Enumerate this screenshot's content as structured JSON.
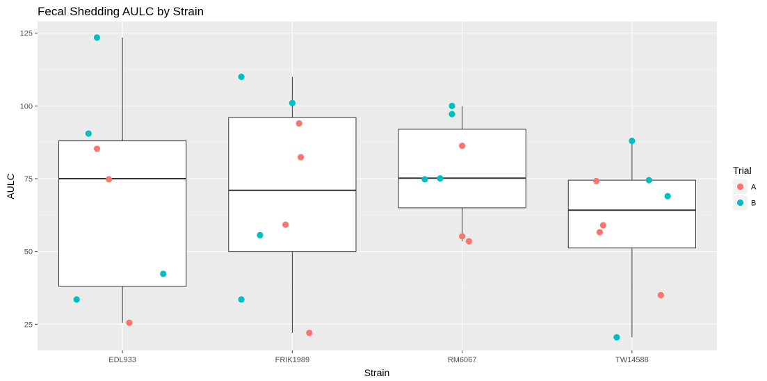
{
  "chart_data": {
    "type": "box",
    "title": "Fecal Shedding AULC by Strain",
    "xlabel": "Strain",
    "ylabel": "AULC",
    "ylim": [
      16,
      129
    ],
    "yticks": [
      25,
      50,
      75,
      100,
      125
    ],
    "grid": true,
    "legend_position": "right",
    "categories": [
      "EDL933",
      "FRIK1989",
      "RM6067",
      "TW14588"
    ],
    "boxes": [
      {
        "category": "EDL933",
        "min": 25.5,
        "q1": 38,
        "median": 75,
        "q3": 88,
        "max": 123.5
      },
      {
        "category": "FRIK1989",
        "min": 22,
        "q1": 50,
        "median": 71,
        "q3": 96,
        "max": 110
      },
      {
        "category": "RM6067",
        "min": 53.5,
        "q1": 65,
        "median": 75.2,
        "q3": 92,
        "max": 100
      },
      {
        "category": "TW14588",
        "min": 20.5,
        "q1": 51.2,
        "median": 64.2,
        "q3": 74.5,
        "max": 88
      }
    ],
    "legend": {
      "title": "Trial",
      "items": [
        {
          "label": "A",
          "color": "#F8766D"
        },
        {
          "label": "B",
          "color": "#00BFC4"
        }
      ]
    },
    "points": [
      {
        "category": "EDL933",
        "jitter": -0.27,
        "y": 33.5,
        "trial": "B"
      },
      {
        "category": "EDL933",
        "jitter": -0.2,
        "y": 90.5,
        "trial": "B"
      },
      {
        "category": "EDL933",
        "jitter": -0.15,
        "y": 123.5,
        "trial": "B"
      },
      {
        "category": "EDL933",
        "jitter": -0.15,
        "y": 85.3,
        "trial": "A"
      },
      {
        "category": "EDL933",
        "jitter": -0.08,
        "y": 74.8,
        "trial": "A"
      },
      {
        "category": "EDL933",
        "jitter": 0.04,
        "y": 25.5,
        "trial": "A"
      },
      {
        "category": "EDL933",
        "jitter": 0.24,
        "y": 42.3,
        "trial": "B"
      },
      {
        "category": "FRIK1989",
        "jitter": -0.3,
        "y": 110,
        "trial": "B"
      },
      {
        "category": "FRIK1989",
        "jitter": -0.3,
        "y": 33.5,
        "trial": "B"
      },
      {
        "category": "FRIK1989",
        "jitter": -0.19,
        "y": 55.6,
        "trial": "B"
      },
      {
        "category": "FRIK1989",
        "jitter": -0.04,
        "y": 59.2,
        "trial": "A"
      },
      {
        "category": "FRIK1989",
        "jitter": 0.0,
        "y": 101,
        "trial": "B"
      },
      {
        "category": "FRIK1989",
        "jitter": 0.04,
        "y": 94,
        "trial": "A"
      },
      {
        "category": "FRIK1989",
        "jitter": 0.05,
        "y": 82.4,
        "trial": "A"
      },
      {
        "category": "FRIK1989",
        "jitter": 0.1,
        "y": 22,
        "trial": "A"
      },
      {
        "category": "RM6067",
        "jitter": -0.22,
        "y": 74.8,
        "trial": "B"
      },
      {
        "category": "RM6067",
        "jitter": -0.13,
        "y": 75.1,
        "trial": "B"
      },
      {
        "category": "RM6067",
        "jitter": -0.06,
        "y": 100,
        "trial": "B"
      },
      {
        "category": "RM6067",
        "jitter": -0.06,
        "y": 97.2,
        "trial": "B"
      },
      {
        "category": "RM6067",
        "jitter": 0.0,
        "y": 86.3,
        "trial": "A"
      },
      {
        "category": "RM6067",
        "jitter": 0.0,
        "y": 55.2,
        "trial": "A"
      },
      {
        "category": "RM6067",
        "jitter": 0.04,
        "y": 53.5,
        "trial": "A"
      },
      {
        "category": "TW14588",
        "jitter": -0.21,
        "y": 74.2,
        "trial": "A"
      },
      {
        "category": "TW14588",
        "jitter": -0.19,
        "y": 56.6,
        "trial": "A"
      },
      {
        "category": "TW14588",
        "jitter": -0.17,
        "y": 59,
        "trial": "A"
      },
      {
        "category": "TW14588",
        "jitter": -0.09,
        "y": 20.5,
        "trial": "B"
      },
      {
        "category": "TW14588",
        "jitter": 0.0,
        "y": 88,
        "trial": "B"
      },
      {
        "category": "TW14588",
        "jitter": 0.1,
        "y": 74.5,
        "trial": "B"
      },
      {
        "category": "TW14588",
        "jitter": 0.17,
        "y": 35,
        "trial": "A"
      },
      {
        "category": "TW14588",
        "jitter": 0.21,
        "y": 69,
        "trial": "B"
      }
    ]
  }
}
